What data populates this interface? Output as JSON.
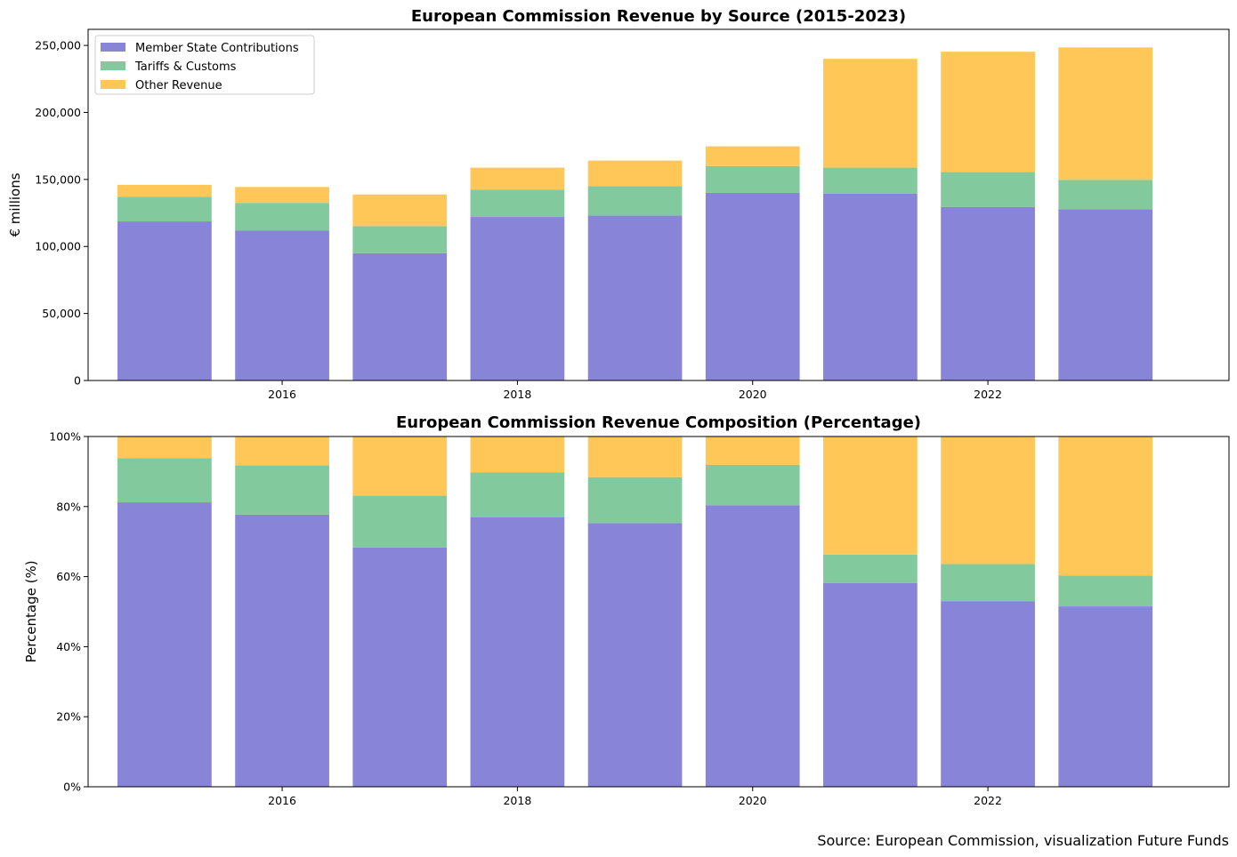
{
  "colors": {
    "member": "#8884d8",
    "tariffs": "#82ca9d",
    "other": "#ffc658"
  },
  "source_note": "Source: European Commission, visualization Future Funds",
  "chart_data": [
    {
      "type": "bar",
      "stacked": true,
      "title": "European Commission Revenue by Source (2015-2023)",
      "xlabel": "",
      "ylabel": "€ millions",
      "x": [
        2015,
        2016,
        2017,
        2018,
        2019,
        2020,
        2021,
        2022,
        2023
      ],
      "xticks": [
        2016,
        2018,
        2020,
        2022
      ],
      "xtick_labels": [
        "2016",
        "2018",
        "2020",
        "2022"
      ],
      "ylim": [
        0,
        262000
      ],
      "yticks": [
        0,
        50000,
        100000,
        150000,
        200000,
        250000
      ],
      "ytick_labels": [
        "0",
        "50,000",
        "100,000",
        "150,000",
        "200,000",
        "250,000"
      ],
      "legend": "top-left",
      "grid": false,
      "series": [
        {
          "name": "Member State Contributions",
          "color_key": "member",
          "values": [
            118700,
            111800,
            95000,
            122000,
            123000,
            140000,
            139500,
            129500,
            127800
          ]
        },
        {
          "name": "Tariffs & Customs",
          "color_key": "tariffs",
          "values": [
            18300,
            20700,
            20200,
            20300,
            22000,
            20000,
            19300,
            26000,
            21900
          ]
        },
        {
          "name": "Other Revenue",
          "color_key": "other",
          "values": [
            9000,
            11900,
            23600,
            16500,
            19100,
            14700,
            81200,
            89800,
            98800
          ]
        }
      ]
    },
    {
      "type": "bar",
      "stacked": true,
      "title": "European Commission Revenue Composition (Percentage)",
      "xlabel": "",
      "ylabel": "Percentage (%)",
      "x": [
        2015,
        2016,
        2017,
        2018,
        2019,
        2020,
        2021,
        2022,
        2023
      ],
      "xticks": [
        2016,
        2018,
        2020,
        2022
      ],
      "xtick_labels": [
        "2016",
        "2018",
        "2020",
        "2022"
      ],
      "ylim": [
        0,
        100
      ],
      "yticks": [
        0,
        20,
        40,
        60,
        80,
        100
      ],
      "ytick_labels": [
        "0%",
        "20%",
        "40%",
        "60%",
        "80%",
        "100%"
      ],
      "grid": false,
      "series": [
        {
          "name": "Member State Contributions",
          "color_key": "member",
          "values": [
            81.2,
            77.7,
            68.3,
            76.9,
            75.3,
            80.4,
            58.2,
            53.0,
            51.5
          ]
        },
        {
          "name": "Tariffs & Customs",
          "color_key": "tariffs",
          "values": [
            12.6,
            14.1,
            14.8,
            12.9,
            13.1,
            11.5,
            8.1,
            10.6,
            8.8
          ]
        },
        {
          "name": "Other Revenue",
          "color_key": "other",
          "values": [
            6.2,
            8.2,
            16.9,
            10.2,
            11.6,
            8.1,
            33.7,
            36.4,
            39.7
          ]
        }
      ]
    }
  ]
}
